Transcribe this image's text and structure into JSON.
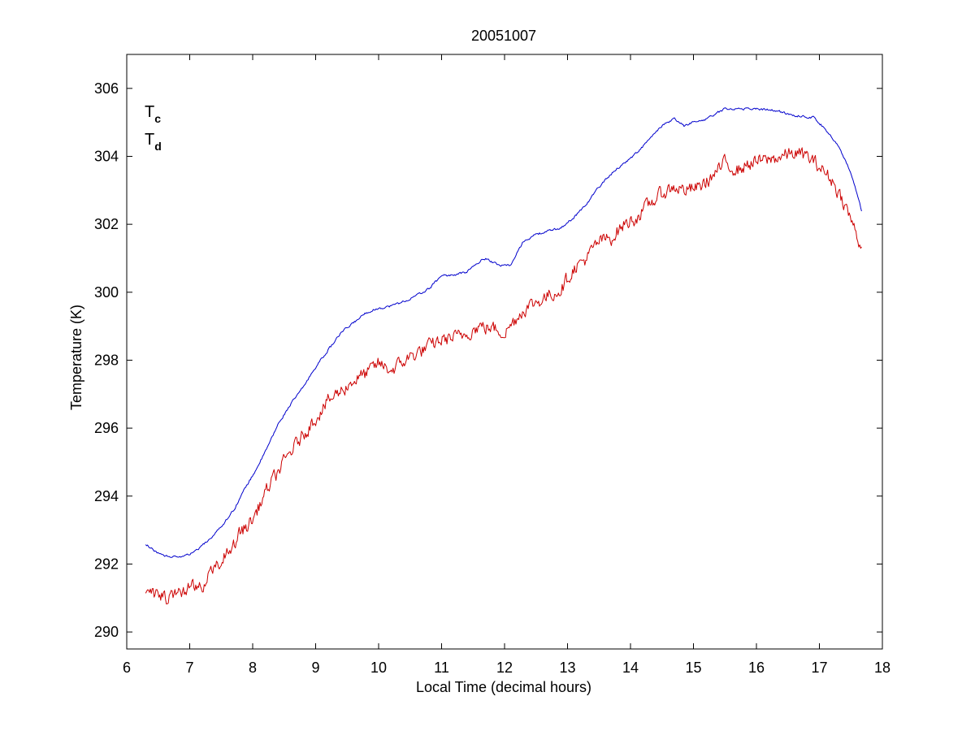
{
  "chart_data": {
    "type": "line",
    "title": "20051007",
    "xlabel": "Local Time (decimal hours)",
    "ylabel": "Temperature (K)",
    "xlim": [
      6,
      18
    ],
    "ylim": [
      289.5,
      307
    ],
    "xticks": [
      6,
      7,
      8,
      9,
      10,
      11,
      12,
      13,
      14,
      15,
      16,
      17,
      18
    ],
    "yticks": [
      290,
      292,
      294,
      296,
      298,
      300,
      302,
      304,
      306
    ],
    "grid": false,
    "legend_position": "top-left",
    "legend": [
      {
        "main": "T",
        "sub": "c",
        "color": "#0000cc"
      },
      {
        "main": "T",
        "sub": "d",
        "color": "#cc0000"
      }
    ],
    "series": [
      {
        "color": "#0000cc",
        "noise": 0.03,
        "x": [
          6.3,
          6.5,
          6.7,
          6.9,
          7.1,
          7.3,
          7.5,
          7.7,
          7.9,
          8.0,
          8.2,
          8.4,
          8.6,
          8.8,
          9.0,
          9.2,
          9.4,
          9.6,
          9.8,
          9.95,
          10.2,
          10.5,
          10.8,
          11.0,
          11.2,
          11.4,
          11.6,
          11.7,
          11.9,
          12.1,
          12.3,
          12.5,
          12.7,
          12.9,
          13.1,
          13.3,
          13.5,
          13.7,
          13.9,
          14.1,
          14.3,
          14.5,
          14.7,
          14.85,
          15.0,
          15.2,
          15.5,
          15.7,
          16.0,
          16.3,
          16.6,
          16.9,
          17.1,
          17.3,
          17.5,
          17.67
        ],
        "y": [
          292.6,
          292.3,
          292.2,
          292.2,
          292.4,
          292.7,
          293.1,
          293.6,
          294.3,
          294.6,
          295.3,
          296.1,
          296.7,
          297.2,
          297.8,
          298.3,
          298.8,
          299.1,
          299.4,
          299.5,
          299.6,
          299.8,
          300.1,
          300.5,
          300.5,
          300.6,
          300.9,
          301.0,
          300.8,
          300.8,
          301.5,
          301.7,
          301.8,
          301.9,
          302.2,
          302.6,
          303.1,
          303.5,
          303.8,
          304.1,
          304.5,
          304.9,
          305.1,
          304.9,
          305.0,
          305.1,
          305.4,
          305.4,
          305.4,
          305.35,
          305.2,
          305.15,
          304.8,
          304.3,
          303.5,
          302.4
        ]
      },
      {
        "color": "#cc0000",
        "noise": 0.18,
        "x": [
          6.3,
          6.5,
          6.6,
          6.8,
          7.0,
          7.2,
          7.4,
          7.6,
          7.8,
          8.0,
          8.2,
          8.4,
          8.6,
          8.8,
          9.0,
          9.2,
          9.4,
          9.6,
          9.8,
          10.0,
          10.2,
          10.5,
          10.8,
          11.0,
          11.3,
          11.6,
          11.9,
          12.0,
          12.3,
          12.6,
          12.9,
          13.1,
          13.3,
          13.5,
          13.7,
          13.9,
          14.1,
          14.3,
          14.5,
          14.7,
          14.9,
          15.1,
          15.3,
          15.5,
          15.7,
          15.9,
          16.2,
          16.4,
          16.6,
          16.8,
          17.0,
          17.2,
          17.4,
          17.55,
          17.67
        ],
        "y": [
          291.2,
          291.1,
          291.0,
          291.1,
          291.3,
          291.4,
          291.9,
          292.4,
          292.9,
          293.3,
          294.1,
          294.7,
          295.3,
          295.8,
          296.3,
          296.8,
          297.1,
          297.4,
          297.6,
          297.9,
          297.7,
          298.1,
          298.4,
          298.6,
          298.7,
          299.0,
          298.9,
          298.8,
          299.5,
          299.8,
          300.1,
          300.7,
          301.0,
          301.5,
          301.6,
          302.0,
          302.2,
          302.6,
          302.9,
          303.1,
          303.0,
          303.1,
          303.4,
          303.8,
          303.6,
          303.8,
          303.9,
          304.0,
          304.1,
          304.0,
          303.7,
          303.3,
          302.6,
          301.9,
          301.3
        ]
      }
    ]
  }
}
